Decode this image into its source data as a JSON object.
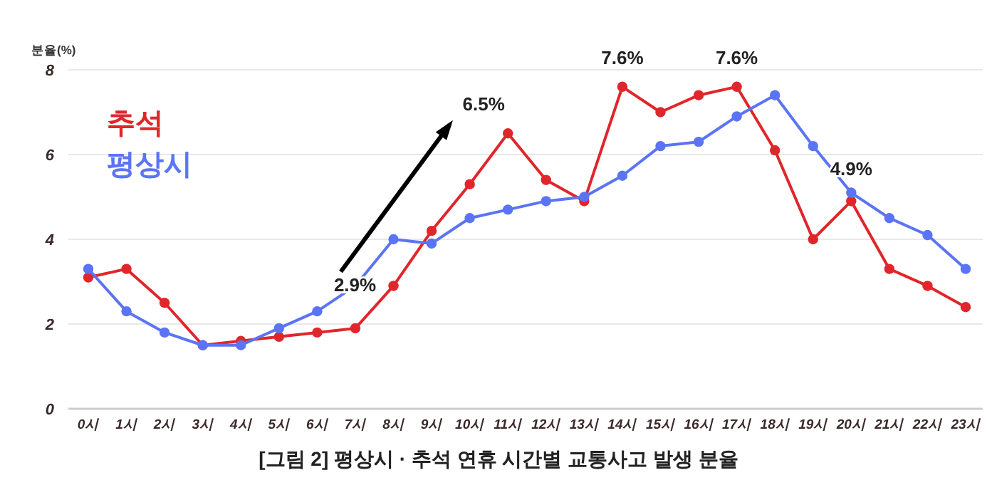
{
  "chart_data": {
    "type": "line",
    "title": "[그림  2]  평상시 · 추석 연휴 시간별 교통사고 발생 분율",
    "ylabel": "분율(%)",
    "categories": [
      "0시",
      "1시",
      "2시",
      "3시",
      "4시",
      "5시",
      "6시",
      "7시",
      "8시",
      "9시",
      "10시",
      "11시",
      "12시",
      "13시",
      "14시",
      "15시",
      "16시",
      "17시",
      "18시",
      "19시",
      "20시",
      "21시",
      "22시",
      "23시"
    ],
    "series": [
      {
        "name": "추석",
        "color": "#e0262b",
        "values": [
          3.1,
          3.3,
          2.5,
          1.5,
          1.6,
          1.7,
          1.8,
          1.9,
          2.9,
          4.2,
          5.3,
          6.5,
          5.4,
          4.9,
          7.6,
          7.0,
          7.4,
          7.6,
          6.1,
          4.0,
          4.9,
          3.3,
          2.9,
          2.4
        ]
      },
      {
        "name": "평상시",
        "color": "#5b74f5",
        "values": [
          3.3,
          2.3,
          1.8,
          1.5,
          1.5,
          1.9,
          2.3,
          2.9,
          4.0,
          3.9,
          4.5,
          4.7,
          4.9,
          5.0,
          5.5,
          6.2,
          6.3,
          6.9,
          7.4,
          6.2,
          5.1,
          4.5,
          4.1,
          3.3
        ]
      }
    ],
    "annotations": [
      {
        "text": "2.9%",
        "x": "8시",
        "y": 2.9
      },
      {
        "text": "6.5%",
        "x": "11시",
        "y": 6.5
      },
      {
        "text": "7.6%",
        "x": "14시",
        "y": 7.6
      },
      {
        "text": "7.6%",
        "x": "17시",
        "y": 7.6
      },
      {
        "text": "4.9%",
        "x": "20시",
        "y": 4.9
      }
    ],
    "ylim": [
      0,
      8
    ],
    "yticks": [
      0,
      2,
      4,
      6,
      8
    ],
    "grid": "y",
    "legend": "top left",
    "marker": "circle",
    "line_style": "solid"
  }
}
